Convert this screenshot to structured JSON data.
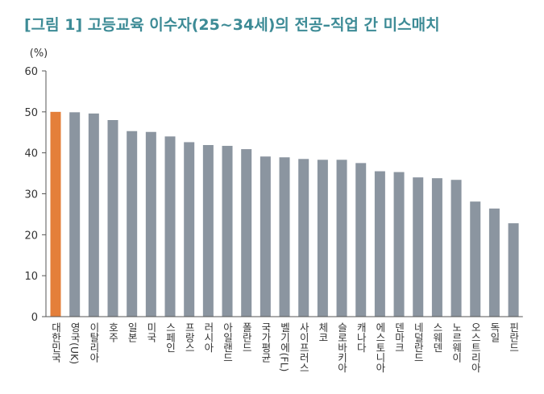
{
  "chart_data": {
    "type": "bar",
    "title": "[그림 1] 고등교육 이수자(25~34세)의 전공–직업 간 미스매치",
    "y_label": "(%)",
    "categories": [
      "대한민국",
      "영국(UK)",
      "이탈리아",
      "호주",
      "일본",
      "미국",
      "스페인",
      "프랑스",
      "러시아",
      "아일랜드",
      "폴란드",
      "국가평균",
      "벨기에(FL)",
      "사이프러스",
      "체코",
      "슬로바키아",
      "캐나다",
      "에스토니아",
      "덴마크",
      "네덜란드",
      "스웨덴",
      "노르웨이",
      "오스트리아",
      "독일",
      "핀란드"
    ],
    "values": [
      50,
      49.9,
      49.6,
      48,
      45.3,
      45.1,
      44,
      42.6,
      41.9,
      41.7,
      40.9,
      39.1,
      38.9,
      38.5,
      38.3,
      38.3,
      37.5,
      35.5,
      35.3,
      34,
      33.8,
      33.4,
      28.1,
      26.4,
      22.8
    ],
    "colors": [
      "#e47f3a",
      "#8b95a0",
      "#8b95a0",
      "#8b95a0",
      "#8b95a0",
      "#8b95a0",
      "#8b95a0",
      "#8b95a0",
      "#8b95a0",
      "#8b95a0",
      "#8b95a0",
      "#8b95a0",
      "#8b95a0",
      "#8b95a0",
      "#8b95a0",
      "#8b95a0",
      "#8b95a0",
      "#8b95a0",
      "#8b95a0",
      "#8b95a0",
      "#8b95a0",
      "#8b95a0",
      "#8b95a0",
      "#8b95a0",
      "#8b95a0"
    ],
    "ylim": [
      0,
      60
    ],
    "yticks": [
      0,
      10,
      20,
      30,
      40,
      50,
      60
    ],
    "grid": false
  }
}
